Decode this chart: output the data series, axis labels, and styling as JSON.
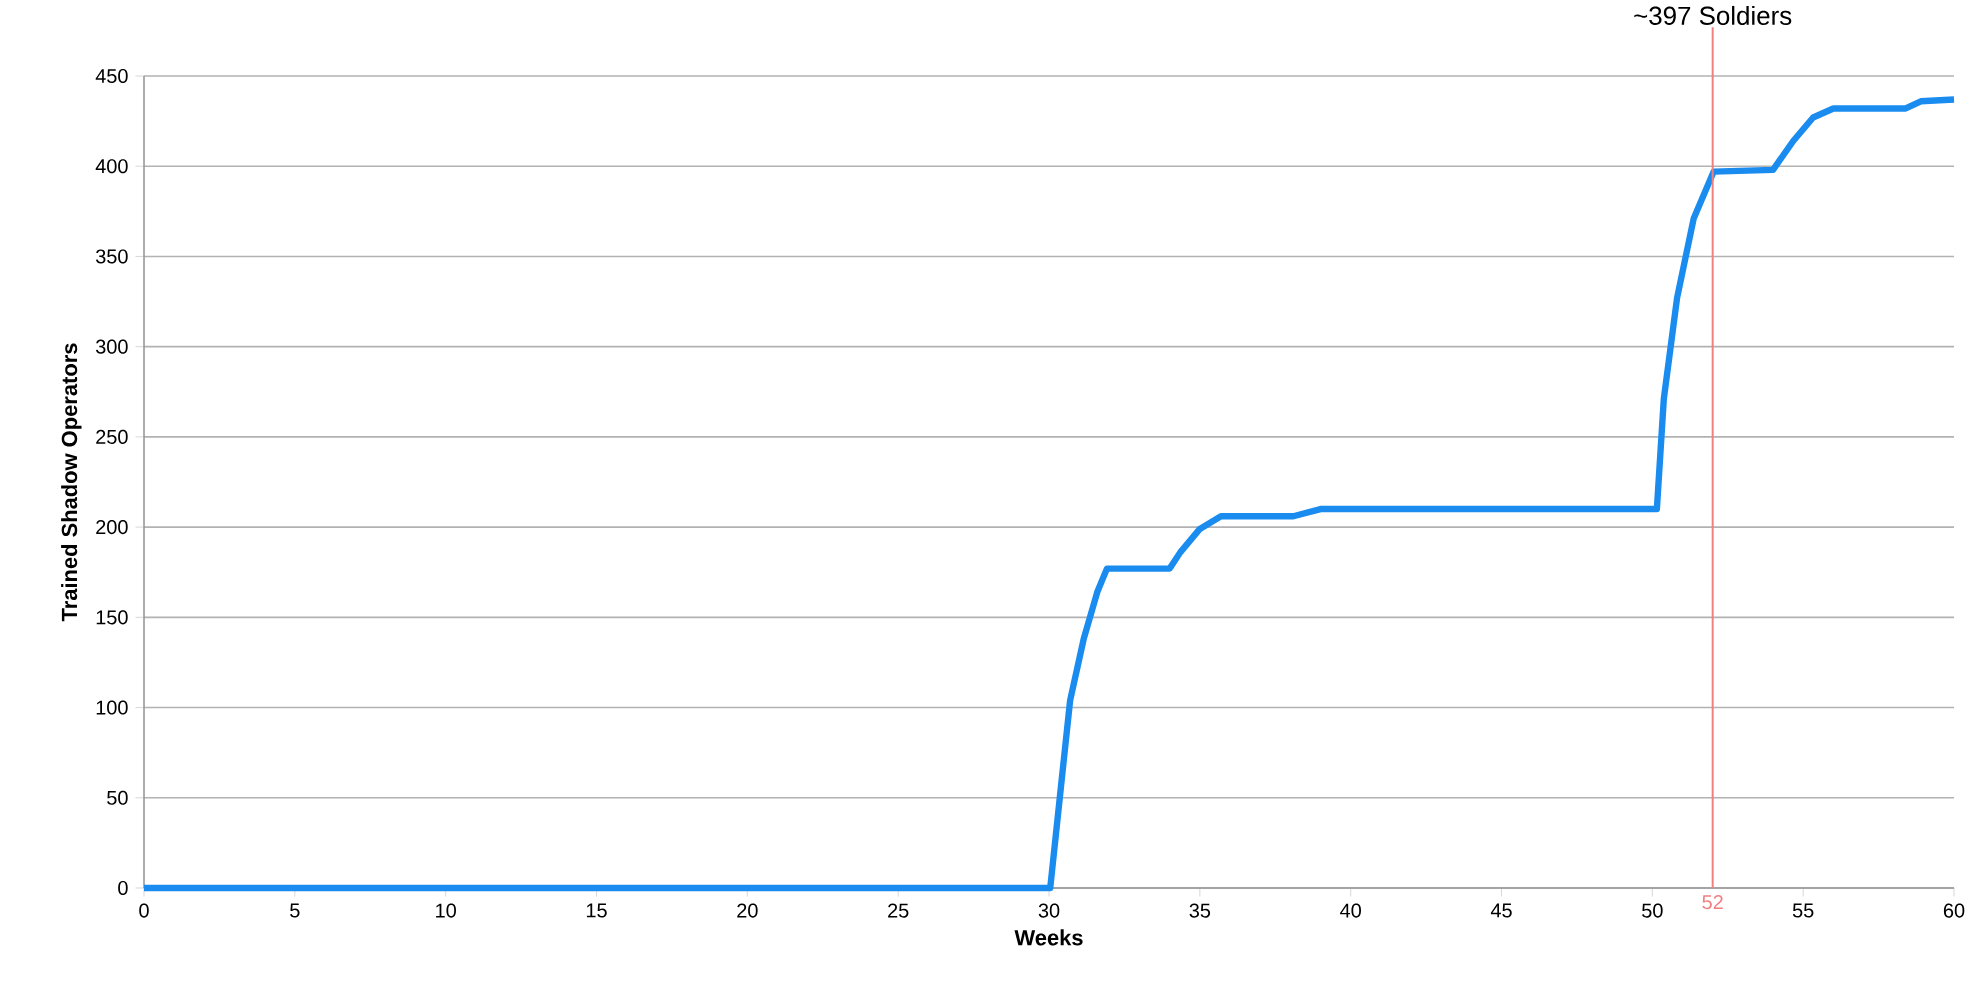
{
  "chart_data": {
    "type": "line",
    "xlabel": "Weeks",
    "ylabel": "Trained Shadow Operators",
    "x": [
      0,
      30.04,
      30.37,
      30.7,
      31.15,
      31.6,
      31.92,
      34.0,
      34.35,
      35.0,
      35.7,
      38.1,
      39.0,
      50.15,
      50.38,
      50.82,
      51.37,
      52.03,
      54.0,
      54.67,
      55.33,
      56.0,
      58.4,
      58.9,
      60
    ],
    "values": [
      0,
      0,
      52,
      104,
      138,
      164,
      177,
      177,
      186,
      199,
      206,
      206,
      210,
      210,
      271,
      327,
      371,
      397,
      398,
      414,
      427,
      432,
      432,
      436,
      437
    ],
    "color": "#1a8cf0",
    "xlim": [
      0,
      60
    ],
    "ylim": [
      0,
      450
    ],
    "xticks": [
      0,
      5,
      10,
      15,
      20,
      25,
      30,
      35,
      40,
      45,
      50,
      55,
      60
    ],
    "yticks": [
      0,
      50,
      100,
      150,
      200,
      250,
      300,
      350,
      400,
      450
    ],
    "grid": "y",
    "marker": "none",
    "line_style": "solid",
    "ref_lines": [
      {
        "axis": "x",
        "value": 52,
        "label": "52",
        "color": "#f08080"
      }
    ],
    "annotations": [
      "~397 Soldiers"
    ]
  }
}
